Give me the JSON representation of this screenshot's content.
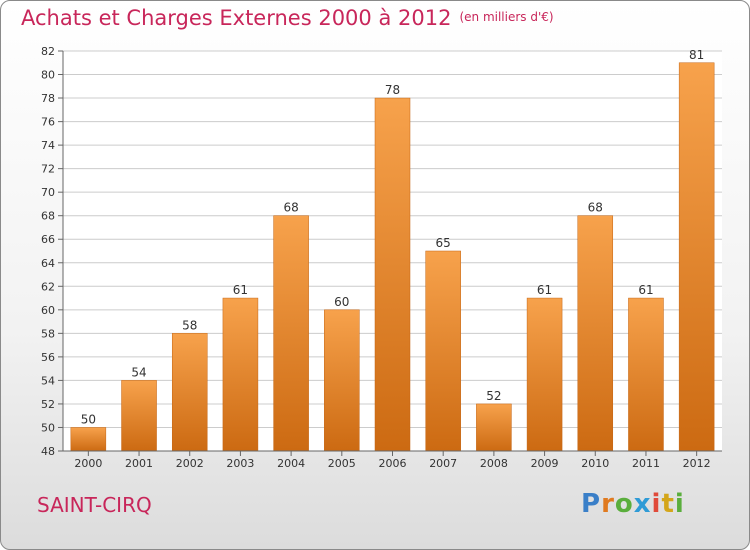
{
  "title": "Achats et Charges Externes 2000 à 2012",
  "subtitle": "(en milliers d'€)",
  "commune": "SAINT-CIRQ",
  "logo": {
    "text": "Proxiti",
    "letters": [
      "P",
      "r",
      "o",
      "x",
      "i",
      "t",
      "i"
    ],
    "colors": [
      "#3a7fc8",
      "#e07a1f",
      "#5aae3c",
      "#2f9bd6",
      "#e04a3a",
      "#d4a61a",
      "#5aae3c"
    ]
  },
  "colors": {
    "title": "#c8265a",
    "bar_top": "#f7a24c",
    "bar_bottom": "#cc6a12",
    "grid": "#cccccc"
  },
  "chart_data": {
    "type": "bar",
    "title": "Achats et Charges Externes 2000 à 2012",
    "subtitle": "(en milliers d'€)",
    "xlabel": "",
    "ylabel": "",
    "categories": [
      "2000",
      "2001",
      "2002",
      "2003",
      "2004",
      "2005",
      "2006",
      "2007",
      "2008",
      "2009",
      "2010",
      "2011",
      "2012"
    ],
    "values": [
      50,
      54,
      58,
      61,
      68,
      60,
      78,
      65,
      52,
      61,
      68,
      61,
      81
    ],
    "ylim": [
      48,
      82
    ],
    "ytick_step": 2,
    "grid": true,
    "legend": "none"
  }
}
